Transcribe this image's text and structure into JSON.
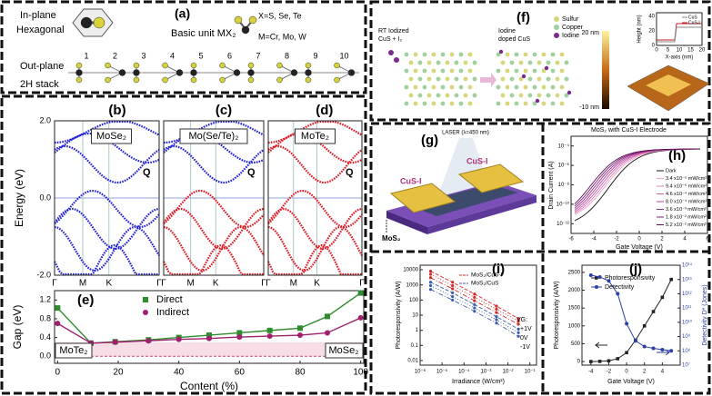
{
  "panel_a": {
    "label": "(a)",
    "inplane": "In-plane",
    "hexagonal": "Hexagonal",
    "basic_unit": "Basic unit MX₂",
    "x_atoms": "X=S, Se, Te",
    "m_atoms": "M=Cr, Mo, W",
    "outplane": "Out-plane",
    "stack": "2H stack",
    "layers": [
      "1",
      "2",
      "3",
      "4",
      "5",
      "6",
      "7",
      "8",
      "9",
      "10"
    ]
  },
  "bands": {
    "ylabel": "Energy (eV)",
    "yticks": [
      {
        "value": 2,
        "label": "2.0"
      },
      {
        "value": 0,
        "label": "0.0"
      },
      {
        "value": -2,
        "label": "-2.0"
      }
    ],
    "ylim": [
      -2,
      2
    ],
    "kpoints": [
      "Γ",
      "M",
      "K",
      "Γ"
    ],
    "panels": [
      {
        "label": "(b)",
        "material": "MoSe₂",
        "q": "Q"
      },
      {
        "label": "(c)",
        "material": "Mo(Se/Te)₂",
        "q": "Q"
      },
      {
        "label": "(d)",
        "material": "MoTe₂",
        "q": "Q"
      }
    ]
  },
  "panel_e": {
    "type": "line",
    "label": "(e)",
    "xlabel": "Content (%)",
    "ylabel": "Gap (eV)",
    "left_end": "MoTe₂",
    "right_end": "MoSe₂",
    "x": [
      0,
      11,
      19,
      30,
      40,
      50,
      60,
      70,
      80,
      89,
      100
    ],
    "series": [
      {
        "name": "Direct",
        "color": "#2e8b2e",
        "values": [
          1.03,
          0.28,
          0.31,
          0.35,
          0.4,
          0.45,
          0.5,
          0.55,
          0.6,
          0.85,
          1.35
        ]
      },
      {
        "name": "Indirect",
        "color": "#a0206e",
        "values": [
          0.7,
          0.28,
          0.3,
          0.33,
          0.36,
          0.38,
          0.41,
          0.43,
          0.45,
          0.5,
          0.82
        ]
      }
    ],
    "xlim": [
      -1,
      101
    ],
    "xticks": [
      0,
      20,
      40,
      60,
      80,
      100
    ],
    "ylim": [
      -0.15,
      1.4
    ],
    "yticks": [
      {
        "value": 0,
        "label": "0.0"
      },
      0.4,
      0.8,
      1.2
    ]
  },
  "panel_f": {
    "label": "(f)",
    "before_1": "RT Iodized",
    "before_2": "CuS + I₂",
    "after_1": "Iodine",
    "after_2": "doped CuS",
    "legend": [
      {
        "name": "Sulfur",
        "color": "#d6d67a"
      },
      {
        "name": "Copper",
        "color": "#9fd0a0"
      },
      {
        "name": "Iodine",
        "color": "#7b2a90"
      }
    ],
    "colorbar_top": "20 nm",
    "colorbar_bottom": "-10 nm",
    "inset": {
      "ylabel": "Height (nm)",
      "xlabel": "X-axis (nm)",
      "yticks": [
        40,
        20,
        0
      ],
      "xticks": [
        0,
        5,
        10,
        15,
        20
      ],
      "legend": [
        "CuS",
        "CuS-I"
      ]
    }
  },
  "panel_g": {
    "label": "(g)",
    "laser": "LASER (λ=450 nm)",
    "electrode_left": "CuS-I",
    "electrode_right": "CuS-I",
    "channel": "MoS₂"
  },
  "panel_h": {
    "label": "(h)",
    "title": "MoS₂ with CuS-I Electrode",
    "xlabel": "Gate Voltage (V)",
    "ylabel": "Drain Current (A)",
    "xticks": [
      -6,
      -4,
      -2,
      0,
      2,
      4,
      6
    ],
    "xlim": [
      -6,
      6
    ],
    "yticks": [
      {
        "value": 0.0001,
        "label": "10⁻⁴"
      },
      {
        "value": 1e-06,
        "label": "10⁻⁶"
      },
      {
        "value": 1e-08,
        "label": "10⁻⁸"
      },
      {
        "value": 1e-10,
        "label": "10⁻¹⁰"
      },
      {
        "value": 1e-12,
        "label": "10⁻¹²"
      }
    ],
    "ylim": [
      1e-13,
      0.001
    ],
    "legend": [
      "Dark",
      "3.4 x10⁻⁵ mW/cm²",
      "9.4 x10⁻⁵ mW/cm²",
      "4.6 x10⁻⁴ mW/cm²",
      "8.0 x10⁻⁴ mW/cm²",
      "3.6 x10⁻³ mW/cm²",
      "1.8 x10⁻² mW/cm²",
      "5.2 x10⁻² mW/cm²"
    ]
  },
  "panel_i": {
    "type": "line",
    "label": "(i)",
    "xlabel": "Irradiance (W/cm²)",
    "ylabel": "Photoresponsivity (A/W)",
    "log": true,
    "gate_title": "VG:",
    "gate_labels": [
      "+1V",
      "0V",
      "-1V"
    ],
    "x": [
      3e-06,
      3e-05,
      0.0003,
      0.003,
      0.03
    ],
    "series": [
      {
        "name": "MoS₂/CuS-I",
        "color": "#d42a2a",
        "lines": [
          [
            8000,
            1500,
            250,
            40,
            6
          ],
          [
            5000,
            900,
            150,
            25,
            4
          ],
          [
            3000,
            550,
            90,
            15,
            2.5
          ]
        ]
      },
      {
        "name": "MoS₂/CuS",
        "color": "#3a5ca8",
        "lines": [
          [
            1500,
            300,
            50,
            8,
            1.2
          ],
          [
            900,
            170,
            30,
            5,
            0.7
          ],
          [
            500,
            100,
            18,
            3,
            0.4
          ]
        ]
      }
    ],
    "xlim": [
      1e-06,
      0.2
    ],
    "xticks": [
      {
        "value": 1e-06,
        "label": "10⁻⁶"
      },
      {
        "value": 1e-05,
        "label": "10⁻⁵"
      },
      {
        "value": 0.0001,
        "label": "10⁻⁴"
      },
      {
        "value": 0.001,
        "label": "10⁻³"
      },
      {
        "value": 0.01,
        "label": "10⁻²"
      },
      {
        "value": 0.1,
        "label": "10⁻¹"
      }
    ],
    "ylim": [
      0.005,
      20000
    ],
    "yticks": [
      0.01,
      0.1,
      1,
      10,
      100,
      1000,
      10000
    ]
  },
  "panel_j": {
    "type": "line",
    "label": "(j)",
    "xlabel": "Gate Voltage (V)",
    "ylabel": "Photoresponsivity (A/W)",
    "y2label": "Detectivity D* (Jones)",
    "x": [
      -4,
      -3,
      -2,
      -1,
      0,
      1,
      2,
      3,
      4,
      5
    ],
    "series": [
      {
        "name": "Photoresponsivity",
        "color": "#222222",
        "values": [
          0,
          5,
          20,
          80,
          250,
          600,
          1000,
          1400,
          1800,
          2300
        ]
      },
      {
        "name": "Detectivity",
        "color": "#2b3fa8",
        "axis": "y2",
        "values": [
          20000000000000.0,
          15000000000000.0,
          8000000000000.0,
          1000000000000.0,
          8000000000.0,
          500000000.0,
          200000000.0,
          150000000.0,
          120000000.0,
          100000000.0
        ]
      }
    ],
    "xlim": [
      -5,
      6
    ],
    "xticks": [
      -4,
      -2,
      0,
      2,
      4
    ],
    "ylim": [
      -100,
      2700
    ],
    "yticks": [
      0,
      500,
      1000,
      1500,
      2000,
      2500
    ],
    "y2lim": [
      10000000.0,
      100000000000000.0
    ],
    "y2ticks": [
      {
        "value": 10000000.0,
        "label": "10⁷"
      },
      {
        "value": 100000000.0,
        "label": "10⁸"
      },
      {
        "value": 1000000000.0,
        "label": "10⁹"
      },
      {
        "value": 10000000000.0,
        "label": "10¹⁰"
      },
      {
        "value": 100000000000.0,
        "label": "10¹¹"
      },
      {
        "value": 1000000000000.0,
        "label": "10¹²"
      },
      {
        "value": 10000000000000.0,
        "label": "10¹³"
      },
      {
        "value": 100000000000000.0,
        "label": "10¹⁴"
      }
    ]
  }
}
